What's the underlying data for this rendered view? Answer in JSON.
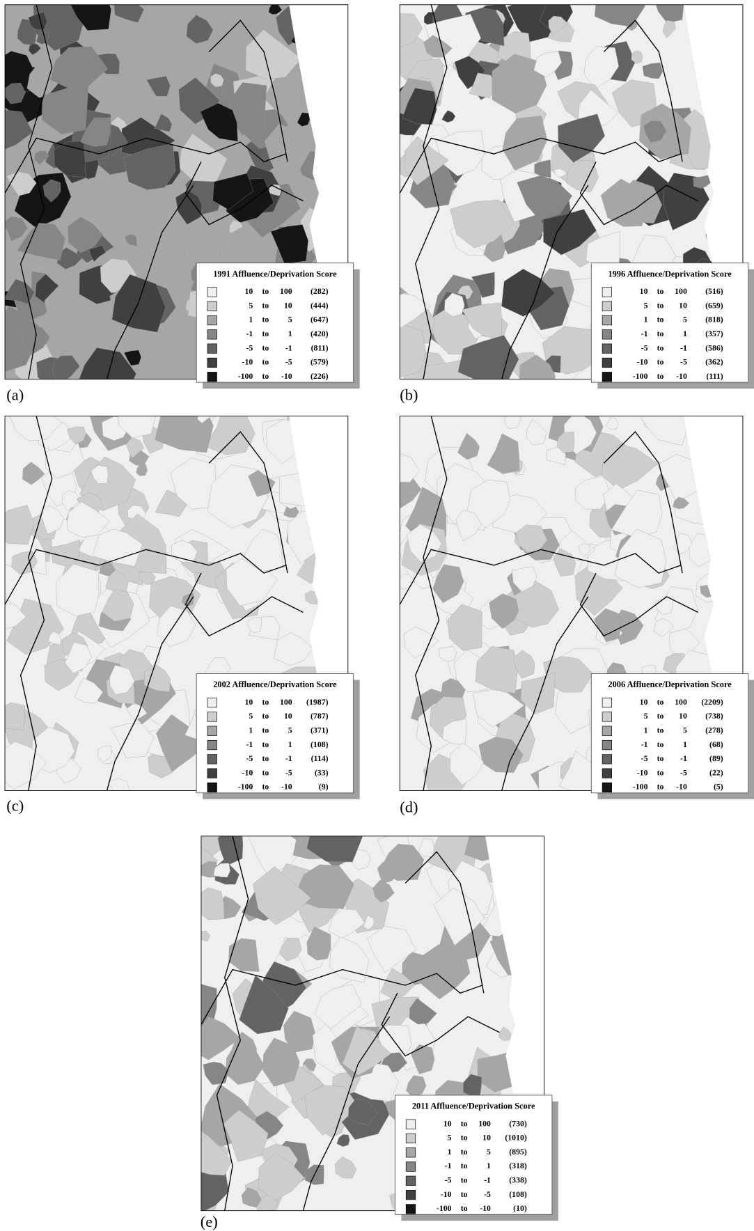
{
  "legend_to": "to",
  "legend_colors": [
    "#efefef",
    "#cdcdcd",
    "#a6a6a6",
    "#868686",
    "#636363",
    "#404040",
    "#151515"
  ],
  "panels": [
    {
      "label": "(a)",
      "legend": {
        "title": "1991 Affluence/Deprivation Score",
        "rows": [
          {
            "from": "10",
            "to": "100",
            "count": "(282)"
          },
          {
            "from": "5",
            "to": "10",
            "count": "(444)"
          },
          {
            "from": "1",
            "to": "5",
            "count": "(647)"
          },
          {
            "from": "-1",
            "to": "1",
            "count": "(420)"
          },
          {
            "from": "-5",
            "to": "-1",
            "count": "(811)"
          },
          {
            "from": "-10",
            "to": "-5",
            "count": "(579)"
          },
          {
            "from": "-100",
            "to": "-10",
            "count": "(226)"
          }
        ]
      }
    },
    {
      "label": "(b)",
      "legend": {
        "title": "1996 Affluence/Deprivation Score",
        "rows": [
          {
            "from": "10",
            "to": "100",
            "count": "(516)"
          },
          {
            "from": "5",
            "to": "10",
            "count": "(659)"
          },
          {
            "from": "1",
            "to": "5",
            "count": "(818)"
          },
          {
            "from": "-1",
            "to": "1",
            "count": "(357)"
          },
          {
            "from": "-5",
            "to": "-1",
            "count": "(586)"
          },
          {
            "from": "-10",
            "to": "-5",
            "count": "(362)"
          },
          {
            "from": "-100",
            "to": "-10",
            "count": "(111)"
          }
        ]
      }
    },
    {
      "label": "(c)",
      "legend": {
        "title": "2002 Affluence/Deprivation Score",
        "rows": [
          {
            "from": "10",
            "to": "100",
            "count": "(1987)"
          },
          {
            "from": "5",
            "to": "10",
            "count": "(787)"
          },
          {
            "from": "1",
            "to": "5",
            "count": "(371)"
          },
          {
            "from": "-1",
            "to": "1",
            "count": "(108)"
          },
          {
            "from": "-5",
            "to": "-1",
            "count": "(114)"
          },
          {
            "from": "-10",
            "to": "-5",
            "count": "(33)"
          },
          {
            "from": "-100",
            "to": "-10",
            "count": "(9)"
          }
        ]
      }
    },
    {
      "label": "(d)",
      "legend": {
        "title": "2006 Affluence/Deprivation Score",
        "rows": [
          {
            "from": "10",
            "to": "100",
            "count": "(2209)"
          },
          {
            "from": "5",
            "to": "10",
            "count": "(738)"
          },
          {
            "from": "1",
            "to": "5",
            "count": "(278)"
          },
          {
            "from": "-1",
            "to": "1",
            "count": "(68)"
          },
          {
            "from": "-5",
            "to": "-1",
            "count": "(89)"
          },
          {
            "from": "-10",
            "to": "-5",
            "count": "(22)"
          },
          {
            "from": "-100",
            "to": "-10",
            "count": "(5)"
          }
        ]
      }
    },
    {
      "label": "(e)",
      "legend": {
        "title": "2011 Affluence/Deprivation Score",
        "rows": [
          {
            "from": "10",
            "to": "100",
            "count": "(730)"
          },
          {
            "from": "5",
            "to": "10",
            "count": "(1010)"
          },
          {
            "from": "1",
            "to": "5",
            "count": "(895)"
          },
          {
            "from": "-1",
            "to": "1",
            "count": "(318)"
          },
          {
            "from": "-5",
            "to": "-1",
            "count": "(338)"
          },
          {
            "from": "-10",
            "to": "-5",
            "count": "(108)"
          },
          {
            "from": "-100",
            "to": "-10",
            "count": "(10)"
          }
        ]
      }
    }
  ]
}
